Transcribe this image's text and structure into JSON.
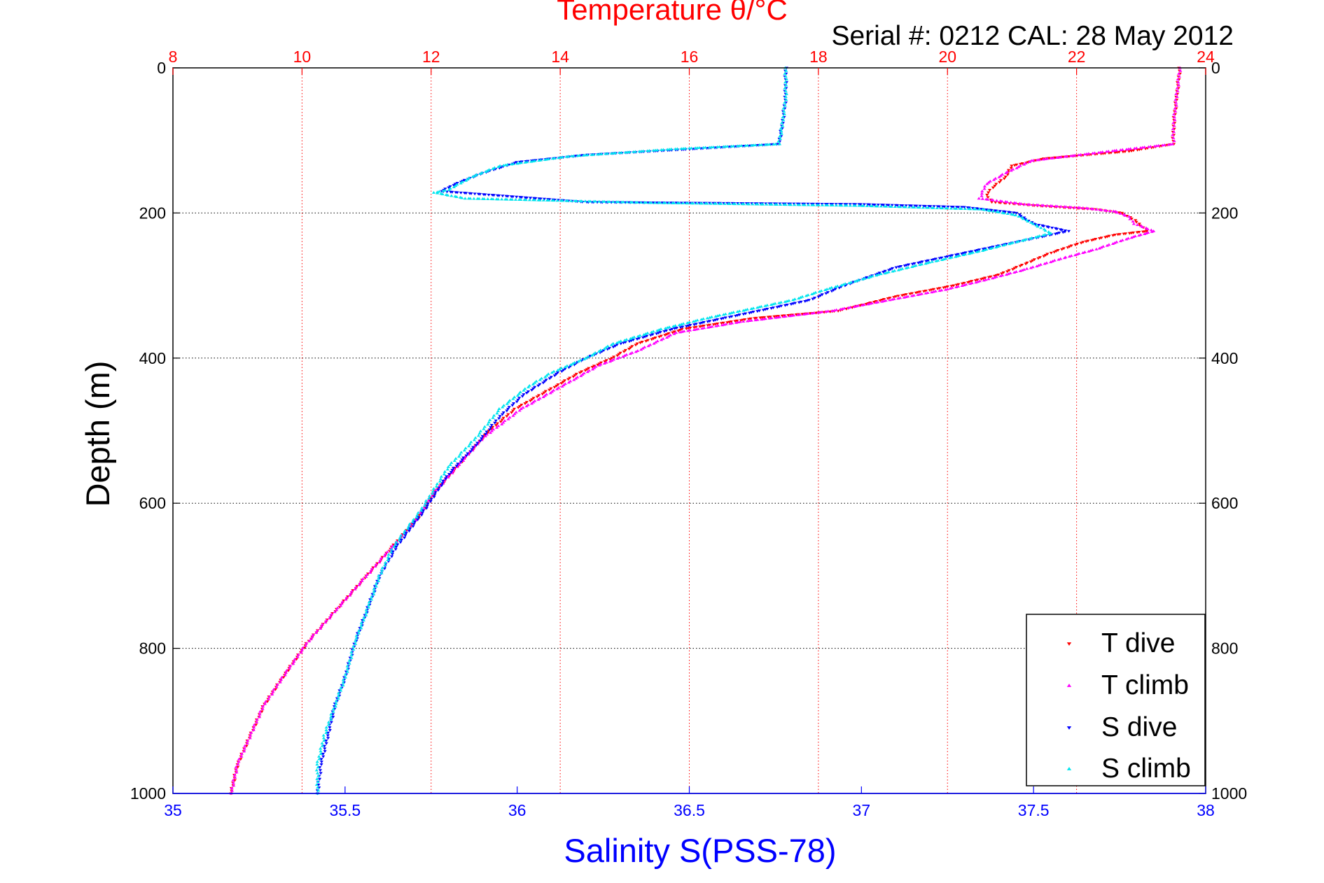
{
  "chart_data": {
    "type": "scatter",
    "title": "Temperature θ/°C",
    "subtitle": "Serial #: 0212  CAL: 28 May 2012",
    "ylabel": "Depth (m)",
    "xlabel_bottom": "Salinity S(PSS-78)",
    "y_axis": {
      "range": [
        0,
        1000
      ],
      "reversed": true,
      "ticks": [
        0,
        200,
        400,
        600,
        800,
        1000
      ]
    },
    "x_bottom": {
      "quantity": "salinity",
      "range": [
        35,
        38
      ],
      "ticks": [
        35,
        35.5,
        36,
        36.5,
        37,
        37.5,
        38
      ]
    },
    "x_top": {
      "quantity": "temperature",
      "range": [
        8,
        24
      ],
      "ticks": [
        8,
        10,
        12,
        14,
        16,
        18,
        20,
        22,
        24
      ]
    },
    "grid": true,
    "legend_position": "bottom-right",
    "colors": {
      "temperature_axis": "#ff0000",
      "salinity_axis": "#0000ff",
      "t_dive": "#ff0000",
      "t_climb": "#ff00ff",
      "s_dive": "#0000ff",
      "s_climb": "#00e5ee"
    },
    "series": [
      {
        "name": "T dive",
        "axis": "top",
        "marker": "triangle-down",
        "color": "#ff0000",
        "points": [
          [
            23.6,
            0
          ],
          [
            23.55,
            40
          ],
          [
            23.5,
            80
          ],
          [
            23.5,
            105
          ],
          [
            22.8,
            115
          ],
          [
            21.5,
            125
          ],
          [
            21.0,
            135
          ],
          [
            20.9,
            150
          ],
          [
            20.7,
            165
          ],
          [
            20.6,
            175
          ],
          [
            20.7,
            185
          ],
          [
            21.4,
            190
          ],
          [
            22.3,
            195
          ],
          [
            22.7,
            200
          ],
          [
            22.9,
            210
          ],
          [
            23.1,
            225
          ],
          [
            22.6,
            230
          ],
          [
            22.1,
            240
          ],
          [
            21.6,
            255
          ],
          [
            21.2,
            270
          ],
          [
            20.8,
            285
          ],
          [
            20.1,
            300
          ],
          [
            19.2,
            315
          ],
          [
            18.3,
            335
          ],
          [
            17.0,
            345
          ],
          [
            15.9,
            360
          ],
          [
            15.2,
            380
          ],
          [
            14.8,
            400
          ],
          [
            14.3,
            420
          ],
          [
            13.9,
            440
          ],
          [
            13.3,
            470
          ],
          [
            12.9,
            500
          ],
          [
            12.5,
            540
          ],
          [
            12.1,
            580
          ],
          [
            11.8,
            620
          ],
          [
            11.4,
            660
          ],
          [
            11.0,
            700
          ],
          [
            10.6,
            740
          ],
          [
            10.1,
            790
          ],
          [
            9.7,
            840
          ],
          [
            9.4,
            880
          ],
          [
            9.2,
            920
          ],
          [
            9.0,
            960
          ],
          [
            8.9,
            1000
          ]
        ]
      },
      {
        "name": "T climb",
        "axis": "top",
        "marker": "triangle-up",
        "color": "#ff00ff",
        "points": [
          [
            23.6,
            0
          ],
          [
            23.55,
            40
          ],
          [
            23.5,
            80
          ],
          [
            23.5,
            105
          ],
          [
            22.5,
            115
          ],
          [
            21.3,
            128
          ],
          [
            20.9,
            145
          ],
          [
            20.6,
            160
          ],
          [
            20.5,
            180
          ],
          [
            21.2,
            188
          ],
          [
            22.1,
            193
          ],
          [
            22.6,
            198
          ],
          [
            22.8,
            205
          ],
          [
            22.9,
            215
          ],
          [
            23.2,
            225
          ],
          [
            22.8,
            235
          ],
          [
            22.3,
            250
          ],
          [
            21.8,
            262
          ],
          [
            21.2,
            278
          ],
          [
            20.6,
            292
          ],
          [
            20.0,
            305
          ],
          [
            19.1,
            320
          ],
          [
            18.2,
            335
          ],
          [
            16.8,
            350
          ],
          [
            15.8,
            365
          ],
          [
            15.2,
            390
          ],
          [
            14.6,
            410
          ],
          [
            14.2,
            430
          ],
          [
            13.8,
            450
          ],
          [
            13.4,
            470
          ],
          [
            12.8,
            510
          ],
          [
            12.4,
            550
          ],
          [
            12.0,
            590
          ],
          [
            11.7,
            630
          ],
          [
            11.3,
            670
          ],
          [
            10.9,
            710
          ],
          [
            10.5,
            750
          ],
          [
            10.1,
            790
          ],
          [
            9.7,
            840
          ],
          [
            9.4,
            880
          ],
          [
            9.2,
            920
          ],
          [
            9.0,
            960
          ],
          [
            8.9,
            1000
          ]
        ]
      },
      {
        "name": "S dive",
        "axis": "bottom",
        "marker": "triangle-down",
        "color": "#0000ff",
        "points": [
          [
            36.78,
            0
          ],
          [
            36.78,
            40
          ],
          [
            36.77,
            80
          ],
          [
            36.76,
            105
          ],
          [
            36.5,
            112
          ],
          [
            36.2,
            120
          ],
          [
            36.0,
            130
          ],
          [
            35.9,
            145
          ],
          [
            35.82,
            160
          ],
          [
            35.78,
            170
          ],
          [
            36.2,
            185
          ],
          [
            37.0,
            188
          ],
          [
            37.3,
            192
          ],
          [
            37.45,
            200
          ],
          [
            37.5,
            215
          ],
          [
            37.6,
            225
          ],
          [
            37.5,
            235
          ],
          [
            37.4,
            245
          ],
          [
            37.25,
            260
          ],
          [
            37.1,
            275
          ],
          [
            36.95,
            300
          ],
          [
            36.85,
            320
          ],
          [
            36.6,
            345
          ],
          [
            36.45,
            360
          ],
          [
            36.3,
            380
          ],
          [
            36.2,
            400
          ],
          [
            36.12,
            420
          ],
          [
            36.02,
            450
          ],
          [
            35.95,
            480
          ],
          [
            35.88,
            520
          ],
          [
            35.8,
            560
          ],
          [
            35.73,
            610
          ],
          [
            35.65,
            660
          ],
          [
            35.6,
            700
          ],
          [
            35.57,
            740
          ],
          [
            35.53,
            790
          ],
          [
            35.5,
            840
          ],
          [
            35.47,
            880
          ],
          [
            35.45,
            920
          ],
          [
            35.43,
            960
          ],
          [
            35.42,
            1000
          ]
        ]
      },
      {
        "name": "S climb",
        "axis": "bottom",
        "marker": "triangle-up",
        "color": "#00e5ee",
        "points": [
          [
            36.78,
            0
          ],
          [
            36.78,
            40
          ],
          [
            36.77,
            80
          ],
          [
            36.76,
            105
          ],
          [
            36.45,
            112
          ],
          [
            36.15,
            122
          ],
          [
            35.95,
            135
          ],
          [
            35.87,
            150
          ],
          [
            35.8,
            168
          ],
          [
            35.76,
            172
          ],
          [
            35.85,
            180
          ],
          [
            36.4,
            186
          ],
          [
            37.0,
            190
          ],
          [
            37.35,
            195
          ],
          [
            37.45,
            203
          ],
          [
            37.5,
            215
          ],
          [
            37.55,
            228
          ],
          [
            37.45,
            240
          ],
          [
            37.35,
            252
          ],
          [
            37.2,
            268
          ],
          [
            37.05,
            285
          ],
          [
            36.9,
            305
          ],
          [
            36.8,
            320
          ],
          [
            36.55,
            345
          ],
          [
            36.42,
            360
          ],
          [
            36.28,
            380
          ],
          [
            36.2,
            400
          ],
          [
            36.1,
            420
          ],
          [
            36.03,
            440
          ],
          [
            35.95,
            470
          ],
          [
            35.88,
            510
          ],
          [
            35.8,
            550
          ],
          [
            35.72,
            610
          ],
          [
            35.64,
            660
          ],
          [
            35.6,
            700
          ],
          [
            35.57,
            740
          ],
          [
            35.53,
            790
          ],
          [
            35.5,
            840
          ],
          [
            35.47,
            880
          ],
          [
            35.44,
            920
          ],
          [
            35.42,
            960
          ],
          [
            35.42,
            1000
          ]
        ]
      }
    ]
  }
}
